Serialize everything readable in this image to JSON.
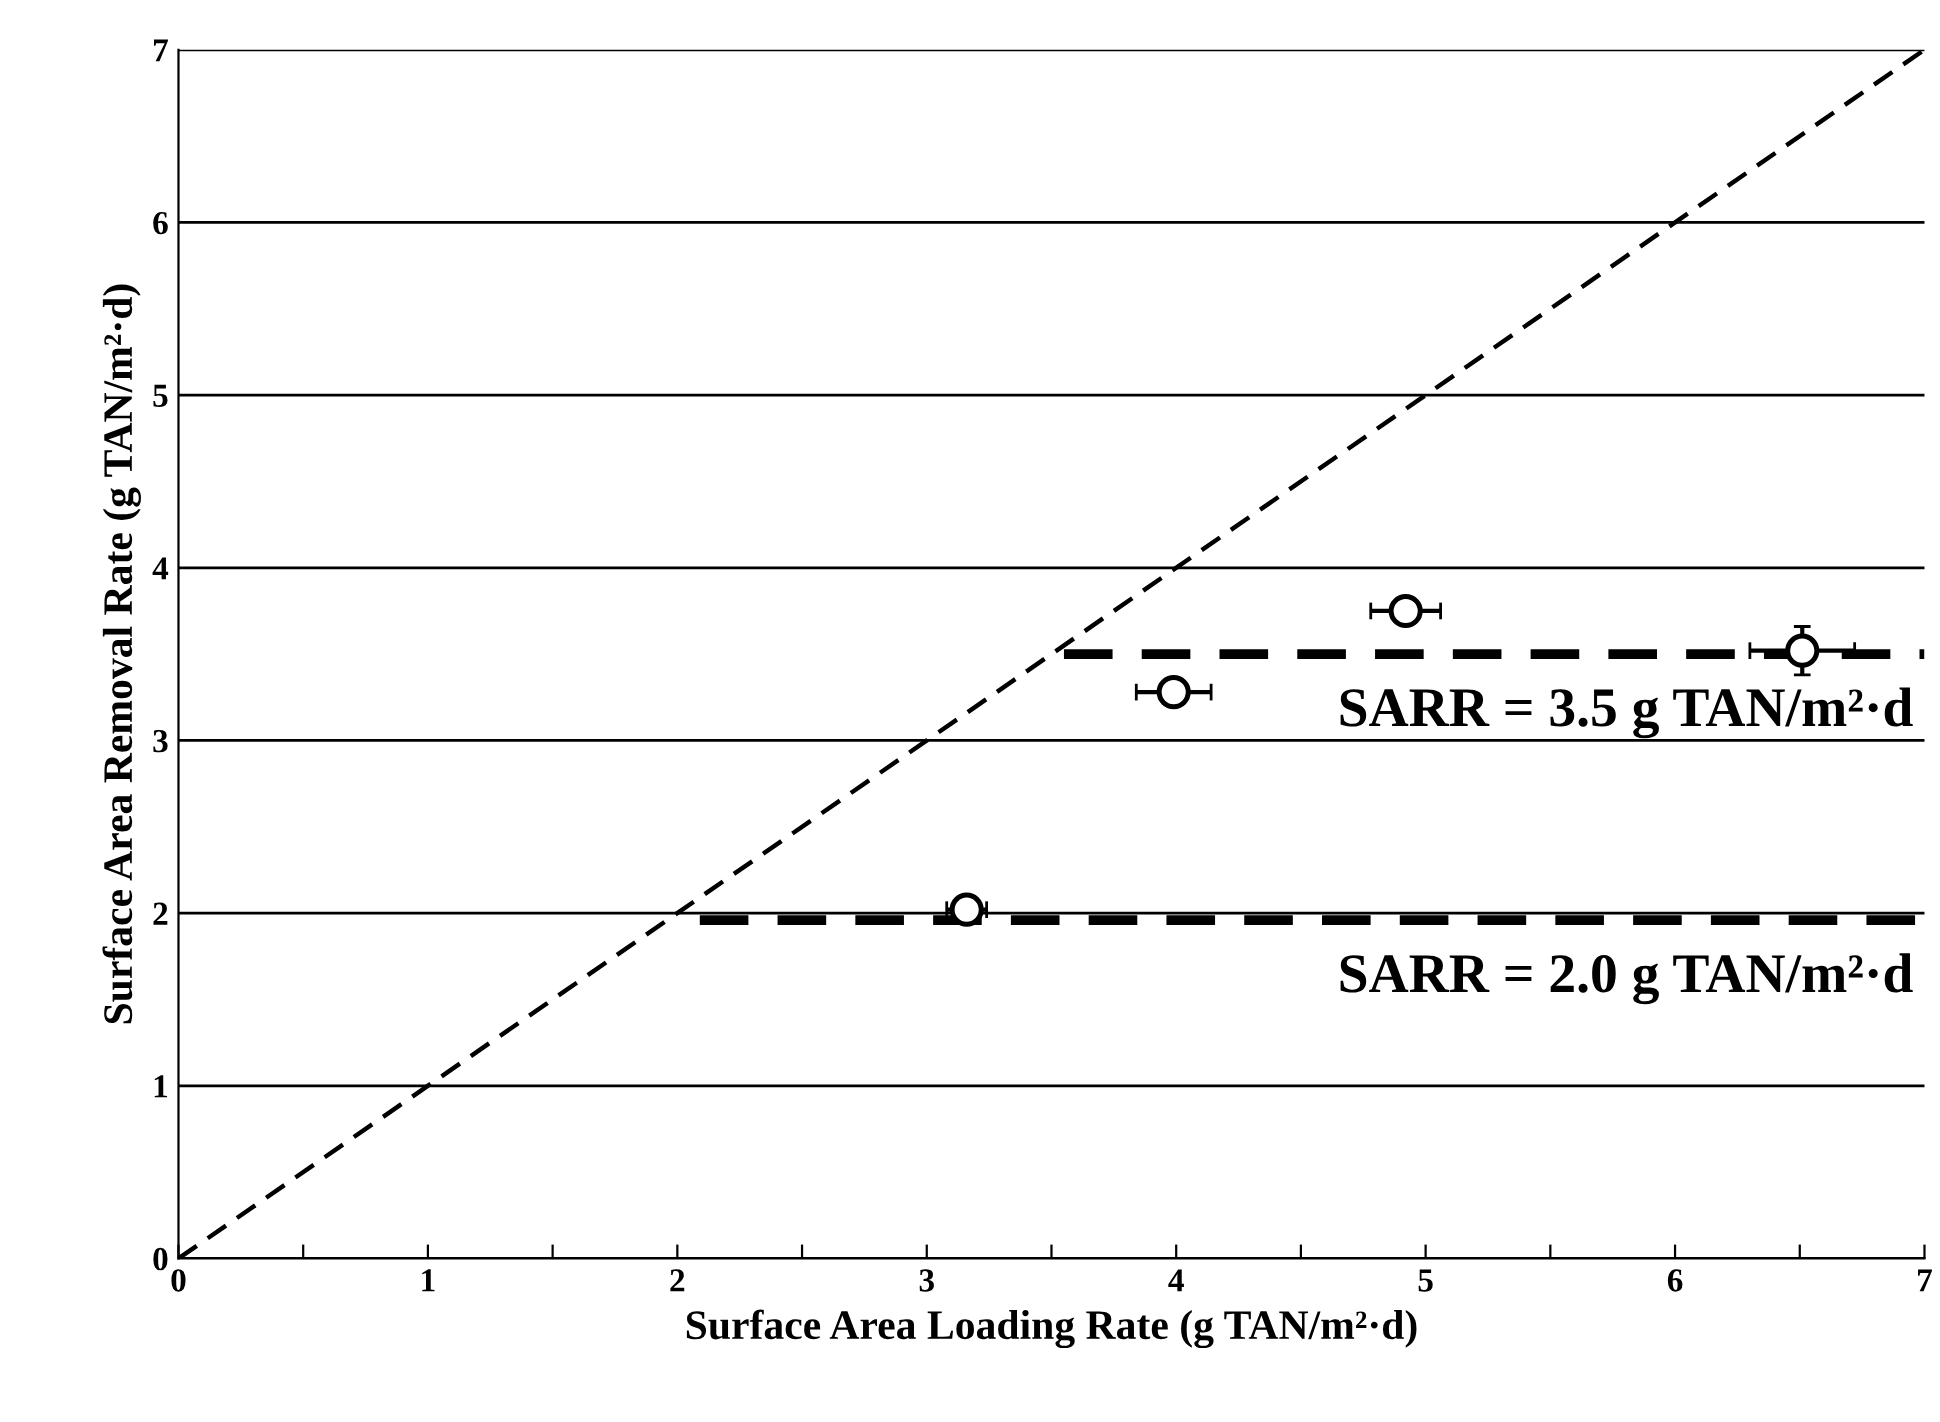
{
  "chart_data": {
    "type": "line",
    "xlabel": "Surface Area Loading Rate (g TAN/m²·d)",
    "ylabel": "Surface Area Removal Rate (g TAN/m²·d)",
    "xlim": [
      0,
      7
    ],
    "ylim": [
      0,
      7
    ],
    "xticks": [
      0,
      {
        "value": 0.5,
        "label": null
      },
      1,
      {
        "value": 1.5,
        "label": null
      },
      2,
      {
        "value": 2.5,
        "label": null
      },
      3,
      {
        "value": 3.5,
        "label": null
      },
      4,
      {
        "value": 4.5,
        "label": null
      },
      5,
      {
        "value": 5.5,
        "label": null
      },
      6,
      {
        "value": 6.5,
        "label": null
      },
      7
    ],
    "yticks": [
      0,
      1,
      2,
      3,
      4,
      5,
      6,
      7
    ],
    "grid": "y",
    "series": [
      {
        "type": "scatter",
        "marker": "circle",
        "color": "#ffffff",
        "x": [
          3.16,
          3.99,
          4.92,
          6.51
        ],
        "values": [
          2.02,
          3.28,
          3.75,
          3.52
        ],
        "xerrors": [
          0.08,
          0.15,
          0.14,
          0.21
        ],
        "errors": [
          null,
          null,
          null,
          0.14
        ]
      },
      {
        "color": "#000000",
        "line_style": "dashed",
        "x": [
          0,
          7
        ],
        "values": [
          0,
          7
        ]
      },
      {
        "color": "#000000",
        "line_style": "dashed",
        "x": [
          3.55,
          7
        ],
        "values": [
          3.5,
          3.5
        ]
      },
      {
        "color": "#000000",
        "line_style": "dashed",
        "x": [
          2.09,
          7
        ],
        "values": [
          1.96,
          1.96
        ]
      }
    ],
    "annotations": [
      {
        "text": "SARR = 3.5 g TAN/m²·d",
        "x": 7,
        "y": 3.5
      },
      {
        "text": "SARR = 2.0 g TAN/m²·d",
        "x": 7,
        "y": 1.96
      }
    ]
  }
}
